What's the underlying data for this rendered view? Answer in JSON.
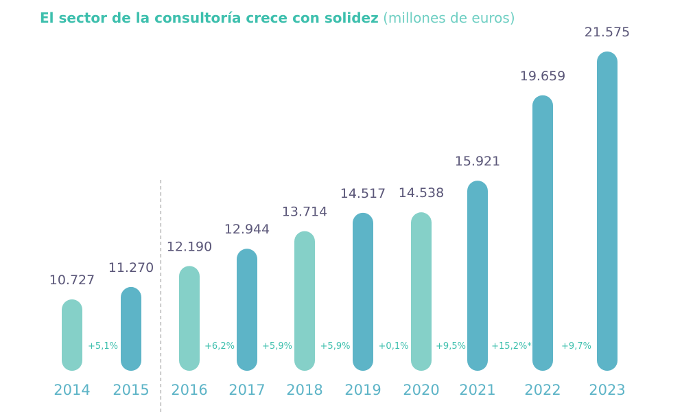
{
  "chart_data": {
    "type": "bar",
    "title": "El sector de la consultoría crece con solidez",
    "subtitle": "(millones de euros)",
    "categories": [
      "2014",
      "2015",
      "2016",
      "2017",
      "2018",
      "2019",
      "2020",
      "2021",
      "2022",
      "2023"
    ],
    "values": [
      10727,
      11270,
      12190,
      12944,
      13714,
      14517,
      14538,
      15921,
      19659,
      21575
    ],
    "value_labels": [
      "10.727",
      "11.270",
      "12.190",
      "12.944",
      "13.714",
      "14.517",
      "14.538",
      "15.921",
      "19.659",
      "21.575"
    ],
    "growth_labels": [
      "+5,1%",
      "+6,2%",
      "+5,9%",
      "+5,9%",
      "+0,1%",
      "+9,5%",
      "+15,2%*",
      "+9,7%"
    ],
    "bar_colors": [
      "#85d0c8",
      "#5db4c7",
      "#85d0c8",
      "#5db4c7",
      "#85d0c8",
      "#5db4c7",
      "#85d0c8",
      "#5db4c7",
      "#5db4c7",
      "#5db4c7"
    ],
    "colors": {
      "title": "#3dbfad",
      "value_label": "#5a5678",
      "year_label": "#5db4c7",
      "growth_label": "#3dbfad",
      "divider": "#8a8a8a"
    },
    "divider_between": [
      "2015",
      "2016"
    ],
    "grid": false,
    "legend": "none"
  }
}
